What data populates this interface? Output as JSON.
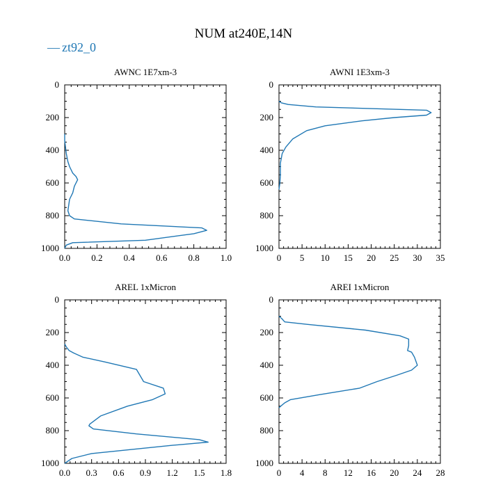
{
  "figure": {
    "title": "NUM at240E,14N",
    "legend_label": "zt92_0",
    "legend_marker": "—"
  },
  "colors": {
    "series": "#1f77b4"
  },
  "chart_data": [
    {
      "type": "line",
      "title": "AWNC  1E7xm-3",
      "series_name": "zt92_0",
      "xlim": [
        0,
        1.0
      ],
      "ylim": [
        1000,
        0
      ],
      "xticks": [
        "0.0",
        "0.2",
        "0.4",
        "0.6",
        "0.8",
        "1.0"
      ],
      "xtick_values": [
        0,
        0.2,
        0.4,
        0.6,
        0.8,
        1.0
      ],
      "yticks": [
        "0",
        "200",
        "400",
        "600",
        "800",
        "1000"
      ],
      "ytick_values": [
        0,
        200,
        400,
        600,
        800,
        1000
      ],
      "x": [
        0,
        0,
        0.01,
        0.02,
        0.03,
        0.05,
        0.07,
        0.08,
        0.06,
        0.05,
        0.03,
        0.02,
        0.03,
        0.06,
        0.35,
        0.85,
        0.88,
        0.8,
        0.5,
        0.05,
        0.01,
        0
      ],
      "y": [
        300,
        340,
        420,
        470,
        500,
        540,
        560,
        580,
        620,
        660,
        700,
        770,
        800,
        820,
        850,
        875,
        890,
        910,
        950,
        965,
        980,
        1000
      ]
    },
    {
      "type": "line",
      "title": "AWNI  1E3xm-3",
      "series_name": "zt92_0",
      "xlim": [
        0,
        35
      ],
      "ylim": [
        1000,
        0
      ],
      "xticks": [
        "0",
        "5",
        "10",
        "15",
        "20",
        "25",
        "30",
        "35"
      ],
      "xtick_values": [
        0,
        5,
        10,
        15,
        20,
        25,
        30,
        35
      ],
      "yticks": [
        "0",
        "200",
        "400",
        "600",
        "800",
        "1000"
      ],
      "ytick_values": [
        0,
        200,
        400,
        600,
        800,
        1000
      ],
      "x": [
        0,
        0.5,
        2,
        8,
        20,
        32,
        33,
        32,
        25,
        18,
        10,
        6,
        3,
        1.5,
        0.7,
        0.3,
        0.3,
        0.2,
        0
      ],
      "y": [
        100,
        110,
        120,
        135,
        145,
        155,
        170,
        185,
        200,
        220,
        250,
        280,
        330,
        380,
        420,
        480,
        550,
        600,
        640
      ]
    },
    {
      "type": "line",
      "title": "AREL  1xMicron",
      "series_name": "zt92_0",
      "xlim": [
        0,
        1.8
      ],
      "ylim": [
        1000,
        0
      ],
      "xticks": [
        "0.0",
        "0.3",
        "0.6",
        "0.9",
        "1.2",
        "1.5",
        "1.8"
      ],
      "xtick_values": [
        0,
        0.3,
        0.6,
        0.9,
        1.2,
        1.5,
        1.8
      ],
      "yticks": [
        "0",
        "200",
        "400",
        "600",
        "800",
        "1000"
      ],
      "ytick_values": [
        0,
        200,
        400,
        600,
        800,
        1000
      ],
      "x": [
        0,
        0.02,
        0.05,
        0.1,
        0.2,
        0.45,
        0.8,
        0.88,
        1.1,
        1.12,
        0.98,
        0.7,
        0.4,
        0.28,
        0.27,
        0.32,
        0.8,
        1.5,
        1.6,
        1.2,
        0.3,
        0.08,
        0
      ],
      "y": [
        270,
        290,
        310,
        325,
        350,
        380,
        425,
        500,
        540,
        575,
        610,
        650,
        710,
        760,
        770,
        790,
        820,
        855,
        870,
        890,
        940,
        970,
        1000
      ]
    },
    {
      "type": "line",
      "title": "AREI  1xMicron",
      "series_name": "zt92_0",
      "xlim": [
        0,
        28
      ],
      "ylim": [
        1000,
        0
      ],
      "xticks": [
        "0",
        "4",
        "8",
        "12",
        "16",
        "20",
        "24",
        "28"
      ],
      "xtick_values": [
        0,
        4,
        8,
        12,
        16,
        20,
        24,
        28
      ],
      "yticks": [
        "0",
        "200",
        "400",
        "600",
        "800",
        "1000"
      ],
      "ytick_values": [
        0,
        200,
        400,
        600,
        800,
        1000
      ],
      "x": [
        0,
        0.5,
        1,
        5,
        15,
        21,
        22.5,
        22.5,
        22.3,
        23,
        23.5,
        24,
        23,
        20.5,
        17,
        14,
        7,
        2,
        1,
        0.3,
        0
      ],
      "y": [
        100,
        115,
        135,
        150,
        185,
        220,
        240,
        280,
        310,
        320,
        350,
        400,
        430,
        460,
        500,
        540,
        580,
        610,
        630,
        650,
        660
      ]
    }
  ]
}
